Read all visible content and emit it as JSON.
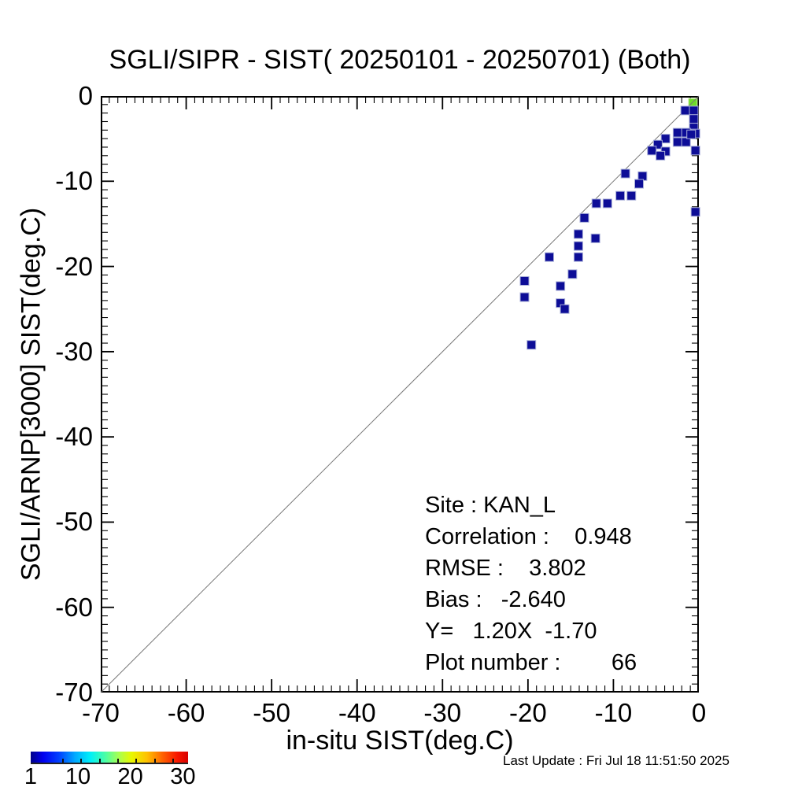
{
  "title": "SGLI/SIPR - SIST( 20250101 - 20250701) (Both)",
  "axes": {
    "xlabel": "in-situ SIST(deg.C)",
    "ylabel": "SGLI/ARNP[3000]   SIST(deg.C)",
    "x_tick_labels": [
      "-70",
      "-60",
      "-50",
      "-40",
      "-30",
      "-20",
      "-10",
      "0"
    ],
    "y_tick_labels": [
      "0",
      "-10",
      "-20",
      "-30",
      "-40",
      "-50",
      "-60",
      "-70"
    ],
    "xlim": [
      -70,
      0
    ],
    "ylim": [
      -70,
      0
    ]
  },
  "stats_lines": [
    "Site : KAN_L",
    "Correlation :    0.948",
    "RMSE :    3.802",
    "Bias :   -2.640",
    "Y=   1.20X  -1.70",
    "Plot number :        66"
  ],
  "footer": "Last Update : Fri Jul 18 11:51:50 2025",
  "colors": {
    "point_low": "#0d0d97",
    "point_low_border": "#a8aed8",
    "point_green": "#6edc28",
    "point_green_border": "#cdefa8",
    "diagonal_line": "#777777",
    "axis": "#000000"
  },
  "colorbar": {
    "min": 1,
    "max": 31,
    "tick_labels": [
      {
        "value": 1,
        "text": "1"
      },
      {
        "value": 10,
        "text": "10"
      },
      {
        "value": 20,
        "text": "20"
      },
      {
        "value": 30,
        "text": "30"
      }
    ],
    "minor_ticks": [
      7,
      10.5,
      14,
      17.5,
      21,
      24.5,
      28
    ]
  },
  "chart_data": {
    "type": "scatter",
    "title": "SGLI/SIPR - SIST( 20250101 - 20250701) (Both)",
    "xlabel": "in-situ SIST(deg.C)",
    "ylabel": "SGLI/ARNP[3000]   SIST(deg.C)",
    "xlim": [
      -70,
      0
    ],
    "ylim": [
      -70,
      0
    ],
    "grid": false,
    "identity_line": true,
    "marker": "square-bin-1deg",
    "site": "KAN_L",
    "correlation": 0.948,
    "rmse": 3.802,
    "bias": -2.64,
    "fit": {
      "slope": 1.2,
      "intercept": -1.7
    },
    "plot_number": 66,
    "density_scale": {
      "min": 1,
      "max": 31,
      "labeled_values": [
        1,
        10,
        20,
        30
      ],
      "colormap": "jet"
    },
    "points": [
      {
        "x": -0.7,
        "y": -0.8,
        "c": 15
      },
      {
        "x": -1.6,
        "y": -1.7,
        "c": 1
      },
      {
        "x": -0.6,
        "y": -1.7,
        "c": 1
      },
      {
        "x": -0.6,
        "y": -2.7,
        "c": 1
      },
      {
        "x": -0.6,
        "y": -3.7,
        "c": 1
      },
      {
        "x": -0.4,
        "y": -4.4,
        "c": 1
      },
      {
        "x": -0.4,
        "y": -6.4,
        "c": 1
      },
      {
        "x": -0.4,
        "y": -13.6,
        "c": 1
      },
      {
        "x": -2.5,
        "y": -4.3,
        "c": 1
      },
      {
        "x": -1.5,
        "y": -4.3,
        "c": 1
      },
      {
        "x": -2.5,
        "y": -5.4,
        "c": 1
      },
      {
        "x": -1.5,
        "y": -5.4,
        "c": 1
      },
      {
        "x": -0.9,
        "y": -4.5,
        "c": 1
      },
      {
        "x": -3.9,
        "y": -5.0,
        "c": 1
      },
      {
        "x": -4.8,
        "y": -5.7,
        "c": 1
      },
      {
        "x": -5.5,
        "y": -6.4,
        "c": 1
      },
      {
        "x": -3.9,
        "y": -6.5,
        "c": 1
      },
      {
        "x": -4.5,
        "y": -7.0,
        "c": 1
      },
      {
        "x": -8.6,
        "y": -9.1,
        "c": 1
      },
      {
        "x": -6.6,
        "y": -9.4,
        "c": 1
      },
      {
        "x": -7.0,
        "y": -10.3,
        "c": 1
      },
      {
        "x": -9.2,
        "y": -11.7,
        "c": 1
      },
      {
        "x": -7.9,
        "y": -11.7,
        "c": 1
      },
      {
        "x": -12.0,
        "y": -12.6,
        "c": 1
      },
      {
        "x": -10.7,
        "y": -12.6,
        "c": 1
      },
      {
        "x": -13.4,
        "y": -14.3,
        "c": 1
      },
      {
        "x": -14.1,
        "y": -16.2,
        "c": 1
      },
      {
        "x": -12.1,
        "y": -16.7,
        "c": 1
      },
      {
        "x": -14.1,
        "y": -17.6,
        "c": 1
      },
      {
        "x": -17.5,
        "y": -18.9,
        "c": 1
      },
      {
        "x": -14.1,
        "y": -18.9,
        "c": 1
      },
      {
        "x": -14.8,
        "y": -20.9,
        "c": 1
      },
      {
        "x": -20.4,
        "y": -21.7,
        "c": 1
      },
      {
        "x": -16.2,
        "y": -22.3,
        "c": 1
      },
      {
        "x": -20.4,
        "y": -23.6,
        "c": 1
      },
      {
        "x": -16.2,
        "y": -24.3,
        "c": 1
      },
      {
        "x": -15.7,
        "y": -25.0,
        "c": 1
      },
      {
        "x": -19.6,
        "y": -29.2,
        "c": 1
      }
    ]
  }
}
